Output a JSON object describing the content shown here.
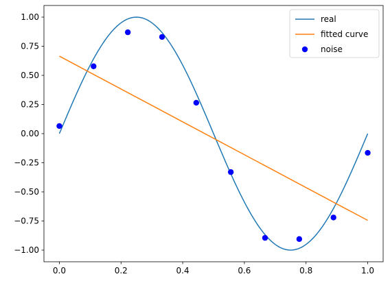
{
  "chart_data": {
    "type": "line",
    "title": "",
    "xlabel": "",
    "ylabel": "",
    "xlim": [
      -0.05,
      1.05
    ],
    "ylim": [
      -1.1,
      1.1
    ],
    "grid": false,
    "legend_position": "top-right",
    "x_ticks": [
      0.0,
      0.2,
      0.4,
      0.6,
      0.8,
      1.0
    ],
    "x_tick_labels": [
      "0.0",
      "0.2",
      "0.4",
      "0.6",
      "0.8",
      "1.0"
    ],
    "y_ticks": [
      1.0,
      0.75,
      0.5,
      0.25,
      0.0,
      -0.25,
      -0.5,
      -0.75,
      -1.0
    ],
    "y_tick_labels": [
      "1.00",
      "0.75",
      "0.50",
      "0.25",
      "0.00",
      "−0.25",
      "−0.50",
      "−0.75",
      "−1.00"
    ],
    "series": [
      {
        "name": "real",
        "kind": "line",
        "color": "#1f77b4",
        "function": "sin(2*pi*x)",
        "x_range": [
          0,
          1
        ]
      },
      {
        "name": "fitted curve",
        "kind": "line",
        "color": "#ff7f0e",
        "x": [
          0,
          1
        ],
        "y": [
          0.665,
          -0.745
        ]
      },
      {
        "name": "noise",
        "kind": "scatter",
        "color": "#0000ff",
        "x": [
          0.0,
          0.111,
          0.222,
          0.333,
          0.444,
          0.556,
          0.667,
          0.778,
          0.889,
          1.0
        ],
        "y": [
          0.065,
          0.578,
          0.87,
          0.83,
          0.265,
          -0.33,
          -0.895,
          -0.905,
          -0.72,
          -0.165
        ]
      }
    ]
  }
}
